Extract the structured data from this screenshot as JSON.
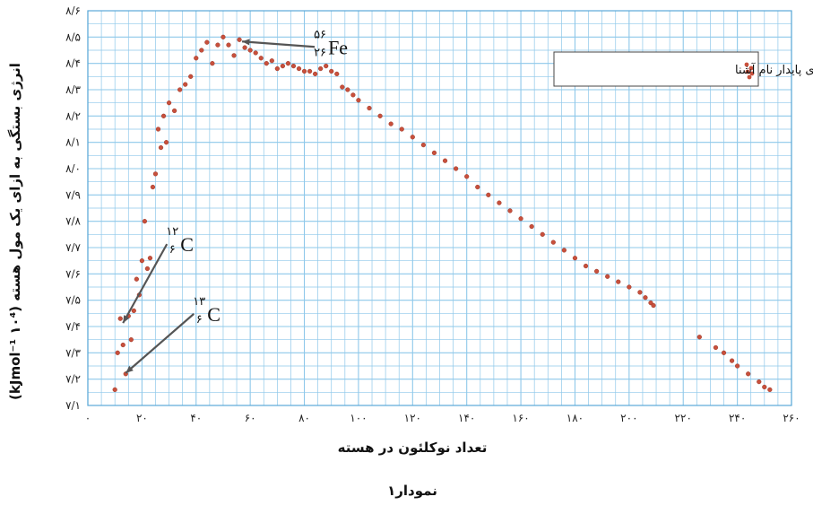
{
  "chart_data": {
    "type": "scatter",
    "title": "",
    "xlabel": "تعداد نوکلئون در هسته",
    "ylabel": "انرژی بستگی به ازای یک مول هسته (۱۰⁴ kJmol⁻¹)",
    "caption": "نمودار۱",
    "xlim": [
      0,
      260
    ],
    "ylim": [
      7.1,
      8.6
    ],
    "x_tick_labels": [
      "۰",
      "۲۰",
      "۴۰",
      "۶۰",
      "۸۰",
      "۱۰۰",
      "۱۲۰",
      "۱۴۰",
      "۱۶۰",
      "۱۸۰",
      "۲۰۰",
      "۲۲۰",
      "۲۴۰",
      "۲۶۰"
    ],
    "x_tick_values": [
      0,
      20,
      40,
      60,
      80,
      100,
      120,
      140,
      160,
      180,
      200,
      220,
      240,
      260
    ],
    "y_tick_labels": [
      "۷/۱",
      "۷/۲",
      "۷/۳",
      "۷/۴",
      "۷/۵",
      "۷/۶",
      "۷/۷",
      "۷/۸",
      "۷/۹",
      "۸/۰",
      "۸/۱",
      "۸/۲",
      "۸/۳",
      "۸/۴",
      "۸/۵",
      "۸/۶"
    ],
    "y_tick_values": [
      7.1,
      7.2,
      7.3,
      7.4,
      7.5,
      7.6,
      7.7,
      7.8,
      7.9,
      8.0,
      8.1,
      8.2,
      8.3,
      8.4,
      8.5,
      8.6
    ],
    "grid": true,
    "legend": {
      "label": "ایزوتوپ‌های پایدار نام آشنا",
      "placement": "top-right"
    },
    "marker_color": "#c8503c",
    "grid_color": "#8ec8ea",
    "series": [
      {
        "name": "ایزوتوپ‌های پایدار نام آشنا",
        "x": [
          10,
          11,
          12,
          13,
          14,
          15,
          16,
          17,
          18,
          19,
          20,
          21,
          22,
          23,
          24,
          25,
          26,
          27,
          28,
          29,
          30,
          32,
          34,
          36,
          38,
          40,
          42,
          44,
          46,
          48,
          50,
          52,
          54,
          56,
          58,
          60,
          62,
          64,
          66,
          68,
          70,
          72,
          74,
          76,
          78,
          80,
          82,
          84,
          86,
          88,
          90,
          92,
          94,
          96,
          98,
          100,
          104,
          108,
          112,
          116,
          120,
          124,
          128,
          132,
          136,
          140,
          144,
          148,
          152,
          156,
          160,
          164,
          168,
          172,
          176,
          180,
          184,
          188,
          192,
          196,
          200,
          204,
          206,
          208,
          209,
          226,
          232,
          235,
          238,
          240,
          244,
          248,
          250,
          252
        ],
        "y": [
          7.16,
          7.3,
          7.43,
          7.33,
          7.22,
          7.44,
          7.35,
          7.46,
          7.58,
          7.52,
          7.65,
          7.8,
          7.62,
          7.66,
          7.93,
          7.98,
          8.15,
          8.08,
          8.2,
          8.1,
          8.25,
          8.22,
          8.3,
          8.32,
          8.35,
          8.42,
          8.45,
          8.48,
          8.4,
          8.47,
          8.5,
          8.47,
          8.43,
          8.49,
          8.46,
          8.45,
          8.44,
          8.42,
          8.4,
          8.41,
          8.38,
          8.39,
          8.4,
          8.39,
          8.38,
          8.37,
          8.37,
          8.36,
          8.38,
          8.39,
          8.37,
          8.36,
          8.31,
          8.3,
          8.28,
          8.26,
          8.23,
          8.2,
          8.17,
          8.15,
          8.12,
          8.09,
          8.06,
          8.03,
          8.0,
          7.97,
          7.93,
          7.9,
          7.87,
          7.84,
          7.81,
          7.78,
          7.75,
          7.72,
          7.69,
          7.66,
          7.63,
          7.61,
          7.59,
          7.57,
          7.55,
          7.53,
          7.51,
          7.49,
          7.48,
          7.36,
          7.32,
          7.3,
          7.27,
          7.25,
          7.22,
          7.19,
          7.17,
          7.16
        ]
      }
    ],
    "annotations": [
      {
        "main": "Fe",
        "mass": "۵۶",
        "atomic": "۲۶",
        "x": 56,
        "y": 8.49
      },
      {
        "main": "C",
        "mass": "۱۲",
        "atomic": "۶",
        "x": 12,
        "y": 7.42
      },
      {
        "main": "C",
        "mass": "۱۳",
        "atomic": "۶",
        "x": 13,
        "y": 7.23
      }
    ]
  }
}
